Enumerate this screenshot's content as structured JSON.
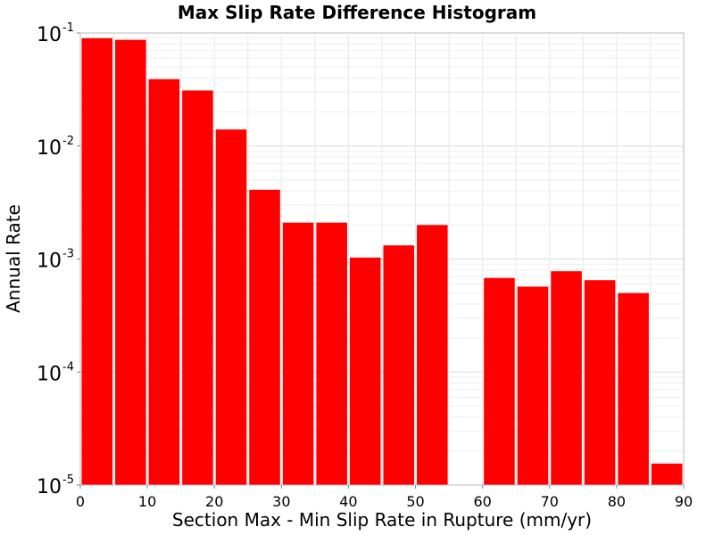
{
  "chart_data": {
    "type": "bar",
    "title": "Max Slip Rate Difference Histogram",
    "xlabel": "Section Max - Min Slip Rate in Rupture (mm/yr)",
    "ylabel": "Annual Rate",
    "x_scale": "linear",
    "y_scale": "log",
    "xlim": [
      0,
      90
    ],
    "ylim": [
      1e-05,
      0.1
    ],
    "bin_width": 5,
    "x_ticks": [
      "0",
      "10",
      "20",
      "30",
      "40",
      "50",
      "60",
      "70",
      "80",
      "90"
    ],
    "y_ticks": [
      {
        "base": "10",
        "exp": "-1"
      },
      {
        "base": "10",
        "exp": "-2"
      },
      {
        "base": "10",
        "exp": "-3"
      },
      {
        "base": "10",
        "exp": "-4"
      },
      {
        "base": "10",
        "exp": "-5"
      }
    ],
    "grid": true,
    "bar_color": "#ff0000",
    "bins": [
      {
        "x": 2.5,
        "value": 0.09
      },
      {
        "x": 7.5,
        "value": 0.087
      },
      {
        "x": 12.5,
        "value": 0.039
      },
      {
        "x": 17.5,
        "value": 0.031
      },
      {
        "x": 22.5,
        "value": 0.014
      },
      {
        "x": 27.5,
        "value": 0.0041
      },
      {
        "x": 32.5,
        "value": 0.0021
      },
      {
        "x": 37.5,
        "value": 0.0021
      },
      {
        "x": 42.5,
        "value": 0.00103
      },
      {
        "x": 47.5,
        "value": 0.00132
      },
      {
        "x": 52.5,
        "value": 0.002
      },
      {
        "x": 57.5,
        "value": 0
      },
      {
        "x": 62.5,
        "value": 0.00068
      },
      {
        "x": 67.5,
        "value": 0.00057
      },
      {
        "x": 72.5,
        "value": 0.00078
      },
      {
        "x": 77.5,
        "value": 0.00065
      },
      {
        "x": 82.5,
        "value": 0.0005
      },
      {
        "x": 87.5,
        "value": 1.55e-05
      }
    ]
  }
}
